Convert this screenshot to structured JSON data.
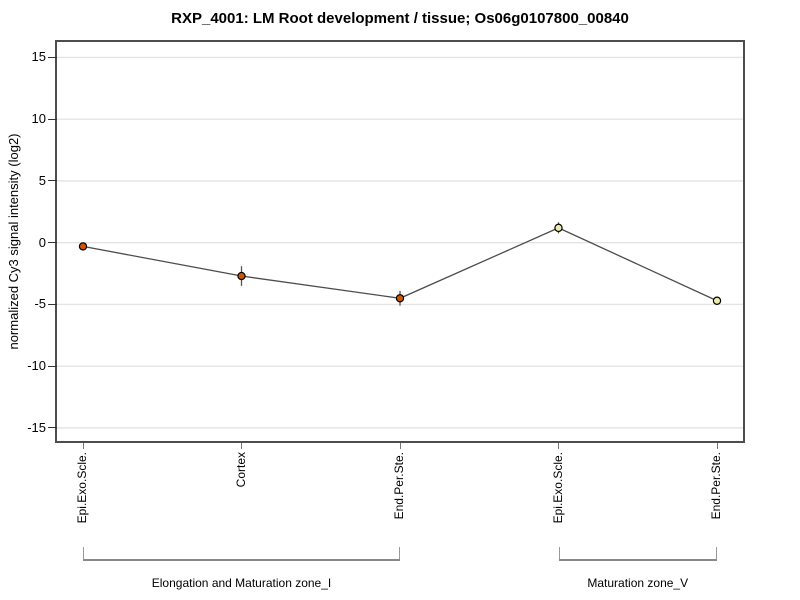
{
  "chart_data": {
    "type": "line",
    "title": "RXP_4001: LM Root development / tissue; Os06g0107800_00840",
    "ylabel": "normalized Cy3 signal intensity (log2)",
    "xlabel": "",
    "categories": [
      "Epi.Exo.Scle.",
      "Cortex",
      "End.Per.Ste.",
      "Epi.Exo.Scle.",
      "End.Per.Ste."
    ],
    "series": [
      {
        "name": "normalized Cy3 signal intensity",
        "values": [
          -0.3,
          -2.7,
          -4.5,
          1.2,
          -4.7
        ],
        "errors": [
          0.15,
          0.8,
          0.6,
          0.45,
          0.12
        ]
      }
    ],
    "point_colors": [
      "#cc5500",
      "#cc5500",
      "#cc5500",
      "#eeeeaa",
      "#eeeeaa"
    ],
    "yticks": [
      15,
      10,
      5,
      0,
      -5,
      -10,
      -15
    ],
    "ylim": [
      -16.2,
      16.1
    ],
    "grid": "horizontal",
    "legend": "none",
    "groups": [
      {
        "label": "Elongation and Maturation zone_I",
        "from": 0,
        "to": 2
      },
      {
        "label": "Maturation zone_V",
        "from": 3,
        "to": 4
      }
    ],
    "colors": {
      "line": "#4d4d4d",
      "grid": "#e4e4e4",
      "border": "#4d4d4d",
      "error_bar": "#555555",
      "point_stroke": "#000000",
      "bracket": "#888888",
      "text": "#000000"
    }
  }
}
